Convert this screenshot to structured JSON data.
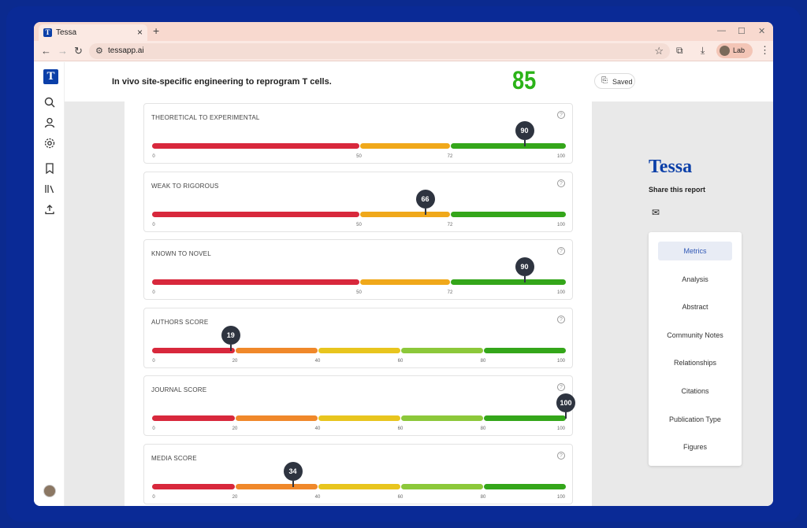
{
  "browser": {
    "tab_title": "Tessa",
    "tab_favicon": "T",
    "url": "tessapp.ai",
    "profile_label": "Lab"
  },
  "app": {
    "logo_letter": "T",
    "paper_title": "In vivo site-specific engineering to reprogram T cells.",
    "overall_score": "85",
    "saved_label": "Saved"
  },
  "metrics": [
    {
      "title": "Theoretical to Experimental",
      "score": 90,
      "scale": "tri",
      "ticks": [
        "0",
        "50",
        "72",
        "100"
      ]
    },
    {
      "title": "Weak to Rigorous",
      "score": 66,
      "scale": "tri",
      "ticks": [
        "0",
        "50",
        "72",
        "100"
      ]
    },
    {
      "title": "Known to Novel",
      "score": 90,
      "scale": "tri",
      "ticks": [
        "0",
        "50",
        "72",
        "100"
      ]
    },
    {
      "title": "Authors Score",
      "score": 19,
      "scale": "penta",
      "ticks": [
        "0",
        "20",
        "40",
        "60",
        "80",
        "100"
      ]
    },
    {
      "title": "Journal Score",
      "score": 100,
      "scale": "penta",
      "ticks": [
        "0",
        "20",
        "40",
        "60",
        "80",
        "100"
      ]
    },
    {
      "title": "Media Score",
      "score": 34,
      "scale": "penta",
      "ticks": [
        "0",
        "20",
        "40",
        "60",
        "80",
        "100"
      ]
    }
  ],
  "colors": {
    "red": "#d8283c",
    "orange": "#f0882a",
    "amber": "#f0a81a",
    "yellow": "#e8c51e",
    "lime": "#8cc83a",
    "green": "#34a61a",
    "brand": "#0b3fa8"
  },
  "right_panel": {
    "brand": "Tessa",
    "share_label": "Share this report",
    "menu": [
      "Metrics",
      "Analysis",
      "Abstract",
      "Community Notes",
      "Relationships",
      "Citations",
      "Publication Type",
      "Figures"
    ],
    "active": "Metrics"
  }
}
